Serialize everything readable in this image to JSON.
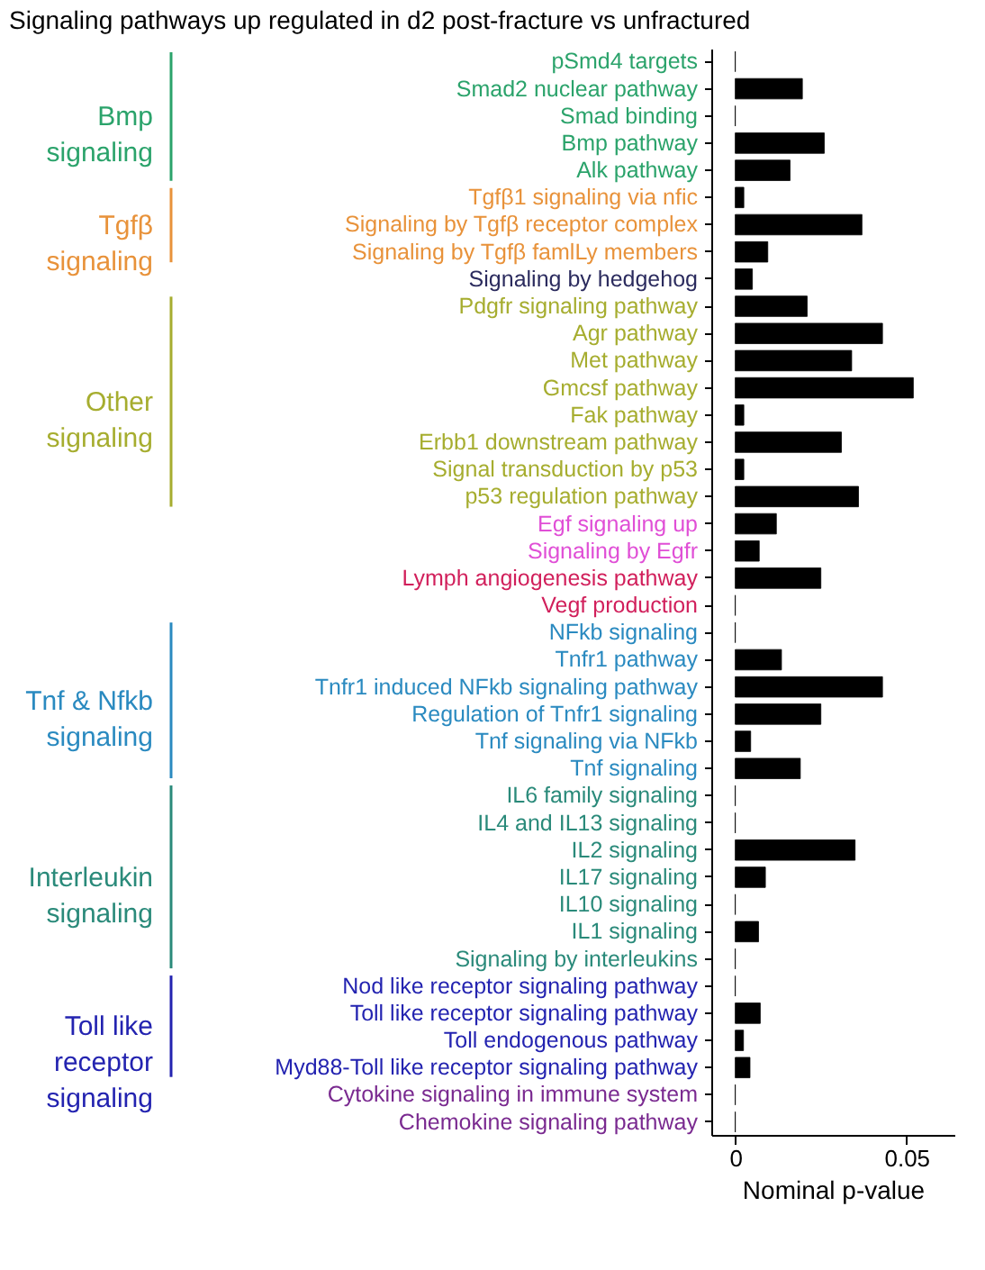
{
  "chart_data": {
    "type": "bar",
    "orientation": "horizontal",
    "title": "Signaling pathways up regulated in d2 post-fracture vs unfractured",
    "xlabel": "Nominal p-value",
    "categories": [
      "pSmd4 targets",
      "Smad2 nuclear pathway",
      "Smad binding",
      "Bmp pathway",
      "Alk pathway",
      "Tgfβ1 signaling via nfic",
      "Signaling by Tgfβ receptor complex",
      "Signaling by Tgfβ famlLy members",
      "Signaling by hedgehog",
      "Pdgfr signaling pathway",
      "Agr pathway",
      "Met pathway",
      "Gmcsf pathway",
      "Fak pathway",
      "Erbb1 downstream pathway",
      "Signal transduction by p53",
      "p53 regulation pathway",
      "Egf signaling up",
      "Signaling by Egfr",
      "Lymph angiogenesis pathway",
      "Vegf production",
      "NFkb signaling",
      "Tnfr1 pathway",
      "Tnfr1 induced NFkb signaling pathway",
      "Regulation of Tnfr1 signaling",
      "Tnf signaling via NFkb",
      "Tnf signaling",
      "IL6 family signaling",
      "IL4 and IL13 signaling",
      "IL2 signaling",
      "IL17 signaling",
      "IL10 signaling",
      "IL1 signaling",
      "Signaling by interleukins",
      "Nod like receptor signaling pathway",
      "Toll like receptor signaling pathway",
      "Toll endogenous pathway",
      "Myd88-Toll like receptor signaling pathway",
      "Cytokine signaling in immune system",
      "Chemokine signaling pathway"
    ],
    "values": [
      0,
      0.0196,
      0,
      0.026,
      0.016,
      0.0025,
      0.037,
      0.0095,
      0.005,
      0.021,
      0.043,
      0.034,
      0.052,
      0.0025,
      0.031,
      0.0025,
      0.036,
      0.012,
      0.007,
      0.025,
      0,
      0,
      0.0135,
      0.043,
      0.025,
      0.0045,
      0.019,
      0,
      0,
      0.035,
      0.0088,
      0,
      0.0068,
      0,
      0,
      0.0073,
      0.0024,
      0.0043,
      0,
      0
    ],
    "color": "#000000",
    "annotations": [
      "Bmp\nsignaling",
      "Tgfβ\nsignaling",
      "Other\nsignaling",
      "Tnf & Nfkb\nsignaling",
      "Interleukin\nsignaling",
      "Toll like\nreceptor\nsignaling"
    ],
    "xlim": [
      -0.007,
      0.064
    ],
    "xticks": [
      0,
      0.05
    ],
    "grid": false
  }
}
